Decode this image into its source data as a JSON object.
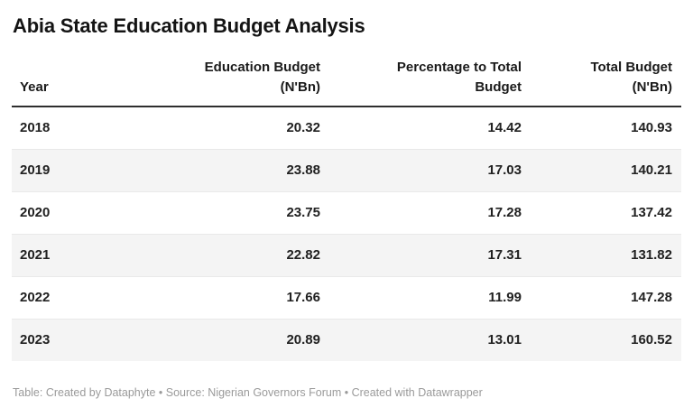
{
  "page": {
    "title": "Abia State Education Budget Analysis"
  },
  "table": {
    "columns": [
      {
        "label": "Year",
        "lines": [
          "Year"
        ],
        "align": "left"
      },
      {
        "label": "Education Budget (N'Bn)",
        "lines": [
          "Education Budget",
          "(N'Bn)"
        ],
        "align": "right"
      },
      {
        "label": "Percentage to Total Budget",
        "lines": [
          "Percentage to Total",
          "Budget"
        ],
        "align": "right"
      },
      {
        "label": "Total Budget (N'Bn)",
        "lines": [
          "Total Budget",
          "(N'Bn)"
        ],
        "align": "right"
      }
    ],
    "rows": [
      {
        "cells": [
          "2018",
          "20.32",
          "14.42",
          "140.93"
        ]
      },
      {
        "cells": [
          "2019",
          "23.88",
          "17.03",
          "140.21"
        ]
      },
      {
        "cells": [
          "2020",
          "23.75",
          "17.28",
          "137.42"
        ]
      },
      {
        "cells": [
          "2021",
          "22.82",
          "17.31",
          "131.82"
        ]
      },
      {
        "cells": [
          "2022",
          "17.66",
          "11.99",
          "147.28"
        ]
      },
      {
        "cells": [
          "2023",
          "20.89",
          "13.01",
          "160.52"
        ]
      }
    ]
  },
  "footer": {
    "text": "Table: Created by Dataphyte • Source: Nigerian Governors Forum • Created with Datawrapper"
  },
  "colors": {
    "title_text": "#141414",
    "header_text": "#1a1a1a",
    "body_text": "#212121",
    "header_rule": "#2e2e2e",
    "row_stripe": "#f4f4f4",
    "row_separator": "#e9e9e9",
    "footer_text": "#9a9a9a",
    "background": "#ffffff"
  },
  "chart_data": {
    "type": "table",
    "title": "Abia State Education Budget Analysis",
    "columns": [
      "Year",
      "Education Budget (N'Bn)",
      "Percentage to Total Budget",
      "Total Budget (N'Bn)"
    ],
    "rows": [
      [
        "2018",
        20.32,
        14.42,
        140.93
      ],
      [
        "2019",
        23.88,
        17.03,
        140.21
      ],
      [
        "2020",
        23.75,
        17.28,
        137.42
      ],
      [
        "2021",
        22.82,
        17.31,
        131.82
      ],
      [
        "2022",
        17.66,
        11.99,
        147.28
      ],
      [
        "2023",
        20.89,
        13.01,
        160.52
      ]
    ],
    "notes": "Table: Created by Dataphyte • Source: Nigerian Governors Forum • Created with Datawrapper",
    "layout_hints": {
      "striped_rows": true,
      "stripe_on": "even-rows",
      "numeric_columns_right_aligned": true,
      "header_rule": "2px solid dark"
    }
  }
}
